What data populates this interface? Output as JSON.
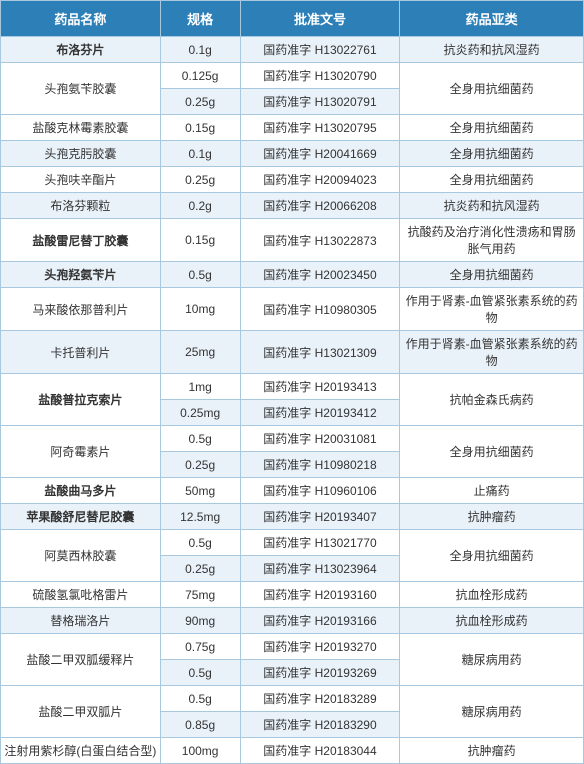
{
  "header_bg": "#2d7fb8",
  "row_odd_bg": "#eaf2f9",
  "row_even_bg": "#ffffff",
  "border_color": "#a8c8e0",
  "columns": [
    "药品名称",
    "规格",
    "批准文号",
    "药品亚类"
  ],
  "rows": [
    {
      "name": "布洛芬片",
      "name_bold": true,
      "spec": "0.1g",
      "approval": "国药准字 H13022761",
      "subtype": "抗炎药和抗风湿药",
      "name_rowspan": 1,
      "subtype_rowspan": 1
    },
    {
      "name": "头孢氨苄胶囊",
      "name_bold": false,
      "spec": "0.125g",
      "approval": "国药准字 H13020790",
      "subtype": "全身用抗细菌药",
      "name_rowspan": 2,
      "subtype_rowspan": 2
    },
    {
      "name": "",
      "name_bold": false,
      "spec": "0.25g",
      "approval": "国药准字 H13020791",
      "subtype": "",
      "name_rowspan": 0,
      "subtype_rowspan": 0
    },
    {
      "name": "盐酸克林霉素胶囊",
      "name_bold": false,
      "spec": "0.15g",
      "approval": "国药准字 H13020795",
      "subtype": "全身用抗细菌药",
      "name_rowspan": 1,
      "subtype_rowspan": 1
    },
    {
      "name": "头孢克肟胶囊",
      "name_bold": false,
      "spec": "0.1g",
      "approval": "国药准字 H20041669",
      "subtype": "全身用抗细菌药",
      "name_rowspan": 1,
      "subtype_rowspan": 1
    },
    {
      "name": "头孢呋辛酯片",
      "name_bold": false,
      "spec": "0.25g",
      "approval": "国药准字 H20094023",
      "subtype": "全身用抗细菌药",
      "name_rowspan": 1,
      "subtype_rowspan": 1
    },
    {
      "name": "布洛芬颗粒",
      "name_bold": false,
      "spec": "0.2g",
      "approval": "国药准字 H20066208",
      "subtype": "抗炎药和抗风湿药",
      "name_rowspan": 1,
      "subtype_rowspan": 1
    },
    {
      "name": "盐酸雷尼替丁胶囊",
      "name_bold": true,
      "spec": "0.15g",
      "approval": "国药准字 H13022873",
      "subtype": "抗酸药及治疗消化性溃疡和胃肠胀气用药",
      "name_rowspan": 1,
      "subtype_rowspan": 1
    },
    {
      "name": "头孢羟氨苄片",
      "name_bold": true,
      "spec": "0.5g",
      "approval": "国药准字 H20023450",
      "subtype": "全身用抗细菌药",
      "name_rowspan": 1,
      "subtype_rowspan": 1
    },
    {
      "name": "马来酸依那普利片",
      "name_bold": false,
      "spec": "10mg",
      "approval": "国药准字 H10980305",
      "subtype": "作用于肾素-血管紧张素系统的药物",
      "name_rowspan": 1,
      "subtype_rowspan": 1
    },
    {
      "name": "卡托普利片",
      "name_bold": false,
      "spec": "25mg",
      "approval": "国药准字 H13021309",
      "subtype": "作用于肾素-血管紧张素系统的药物",
      "name_rowspan": 1,
      "subtype_rowspan": 1
    },
    {
      "name": "盐酸普拉克索片",
      "name_bold": true,
      "spec": "1mg",
      "approval": "国药准字 H20193413",
      "subtype": "抗帕金森氏病药",
      "name_rowspan": 2,
      "subtype_rowspan": 2
    },
    {
      "name": "",
      "name_bold": false,
      "spec": "0.25mg",
      "approval": "国药准字 H20193412",
      "subtype": "",
      "name_rowspan": 0,
      "subtype_rowspan": 0
    },
    {
      "name": "阿奇霉素片",
      "name_bold": false,
      "spec": "0.5g",
      "approval": "国药准字 H20031081",
      "subtype": "全身用抗细菌药",
      "name_rowspan": 2,
      "subtype_rowspan": 2
    },
    {
      "name": "",
      "name_bold": false,
      "spec": "0.25g",
      "approval": "国药准字 H10980218",
      "subtype": "",
      "name_rowspan": 0,
      "subtype_rowspan": 0
    },
    {
      "name": "盐酸曲马多片",
      "name_bold": true,
      "spec": "50mg",
      "approval": "国药准字 H10960106",
      "subtype": "止痛药",
      "name_rowspan": 1,
      "subtype_rowspan": 1
    },
    {
      "name": "苹果酸舒尼替尼胶囊",
      "name_bold": true,
      "spec": "12.5mg",
      "approval": "国药准字 H20193407",
      "subtype": "抗肿瘤药",
      "name_rowspan": 1,
      "subtype_rowspan": 1
    },
    {
      "name": "阿莫西林胶囊",
      "name_bold": false,
      "spec": "0.5g",
      "approval": "国药准字 H13021770",
      "subtype": "全身用抗细菌药",
      "name_rowspan": 2,
      "subtype_rowspan": 2
    },
    {
      "name": "",
      "name_bold": false,
      "spec": "0.25g",
      "approval": "国药准字 H13023964",
      "subtype": "",
      "name_rowspan": 0,
      "subtype_rowspan": 0
    },
    {
      "name": "硫酸氢氯吡格雷片",
      "name_bold": false,
      "spec": "75mg",
      "approval": "国药准字 H20193160",
      "subtype": "抗血栓形成药",
      "name_rowspan": 1,
      "subtype_rowspan": 1
    },
    {
      "name": "替格瑞洛片",
      "name_bold": false,
      "spec": "90mg",
      "approval": "国药准字 H20193166",
      "subtype": "抗血栓形成药",
      "name_rowspan": 1,
      "subtype_rowspan": 1
    },
    {
      "name": "盐酸二甲双胍缓释片",
      "name_bold": false,
      "spec": "0.75g",
      "approval": "国药准字 H20193270",
      "subtype": "糖尿病用药",
      "name_rowspan": 2,
      "subtype_rowspan": 2
    },
    {
      "name": "",
      "name_bold": false,
      "spec": "0.5g",
      "approval": "国药准字 H20193269",
      "subtype": "",
      "name_rowspan": 0,
      "subtype_rowspan": 0
    },
    {
      "name": "盐酸二甲双胍片",
      "name_bold": false,
      "spec": "0.5g",
      "approval": "国药准字 H20183289",
      "subtype": "糖尿病用药",
      "name_rowspan": 2,
      "subtype_rowspan": 2
    },
    {
      "name": "",
      "name_bold": false,
      "spec": "0.85g",
      "approval": "国药准字 H20183290",
      "subtype": "",
      "name_rowspan": 0,
      "subtype_rowspan": 0
    },
    {
      "name": "注射用紫杉醇(白蛋白结合型)",
      "name_bold": false,
      "spec": "100mg",
      "approval": "国药准字 H20183044",
      "subtype": "抗肿瘤药",
      "name_rowspan": 1,
      "subtype_rowspan": 1
    }
  ]
}
